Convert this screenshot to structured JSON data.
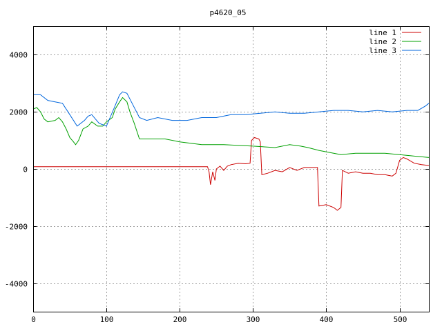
{
  "chart_data": {
    "type": "line",
    "title": "p4620_05",
    "xlabel": "",
    "ylabel": "",
    "xlim": [
      0,
      540
    ],
    "ylim": [
      -5000,
      5000
    ],
    "xticks": [
      0,
      100,
      200,
      300,
      400,
      500
    ],
    "yticks": [
      -4000,
      -2000,
      0,
      2000,
      4000
    ],
    "grid": true,
    "legend_position": "top-right",
    "series": [
      {
        "name": "line 1",
        "color": "#cc0000",
        "points": [
          [
            0,
            80
          ],
          [
            100,
            80
          ],
          [
            200,
            80
          ],
          [
            238,
            80
          ],
          [
            240,
            -100
          ],
          [
            242,
            -550
          ],
          [
            245,
            -100
          ],
          [
            248,
            -400
          ],
          [
            250,
            0
          ],
          [
            255,
            100
          ],
          [
            260,
            -50
          ],
          [
            265,
            100
          ],
          [
            270,
            150
          ],
          [
            280,
            200
          ],
          [
            290,
            180
          ],
          [
            296,
            200
          ],
          [
            298,
            1000
          ],
          [
            302,
            1100
          ],
          [
            308,
            1050
          ],
          [
            310,
            950
          ],
          [
            312,
            -200
          ],
          [
            320,
            -150
          ],
          [
            330,
            -50
          ],
          [
            340,
            -100
          ],
          [
            350,
            50
          ],
          [
            360,
            -50
          ],
          [
            370,
            50
          ],
          [
            380,
            50
          ],
          [
            388,
            50
          ],
          [
            390,
            -1300
          ],
          [
            400,
            -1250
          ],
          [
            410,
            -1350
          ],
          [
            415,
            -1450
          ],
          [
            420,
            -1350
          ],
          [
            422,
            -50
          ],
          [
            430,
            -150
          ],
          [
            440,
            -100
          ],
          [
            450,
            -150
          ],
          [
            460,
            -150
          ],
          [
            470,
            -200
          ],
          [
            480,
            -200
          ],
          [
            490,
            -250
          ],
          [
            495,
            -150
          ],
          [
            500,
            300
          ],
          [
            505,
            400
          ],
          [
            510,
            350
          ],
          [
            520,
            200
          ],
          [
            530,
            150
          ],
          [
            540,
            120
          ]
        ]
      },
      {
        "name": "line 2",
        "color": "#00a000",
        "points": [
          [
            0,
            2100
          ],
          [
            5,
            2150
          ],
          [
            10,
            2000
          ],
          [
            15,
            1750
          ],
          [
            20,
            1650
          ],
          [
            30,
            1700
          ],
          [
            35,
            1800
          ],
          [
            40,
            1650
          ],
          [
            45,
            1400
          ],
          [
            50,
            1100
          ],
          [
            55,
            950
          ],
          [
            58,
            850
          ],
          [
            62,
            1000
          ],
          [
            68,
            1400
          ],
          [
            75,
            1500
          ],
          [
            80,
            1650
          ],
          [
            88,
            1500
          ],
          [
            95,
            1500
          ],
          [
            100,
            1650
          ],
          [
            108,
            1800
          ],
          [
            112,
            2100
          ],
          [
            118,
            2350
          ],
          [
            122,
            2500
          ],
          [
            128,
            2350
          ],
          [
            132,
            2000
          ],
          [
            138,
            1600
          ],
          [
            145,
            1050
          ],
          [
            160,
            1050
          ],
          [
            180,
            1050
          ],
          [
            200,
            950
          ],
          [
            230,
            850
          ],
          [
            260,
            850
          ],
          [
            300,
            800
          ],
          [
            330,
            750
          ],
          [
            350,
            850
          ],
          [
            365,
            800
          ],
          [
            375,
            750
          ],
          [
            390,
            650
          ],
          [
            410,
            550
          ],
          [
            420,
            500
          ],
          [
            440,
            550
          ],
          [
            460,
            550
          ],
          [
            480,
            550
          ],
          [
            500,
            500
          ],
          [
            520,
            450
          ],
          [
            540,
            400
          ]
        ]
      },
      {
        "name": "line 3",
        "color": "#0066dd",
        "points": [
          [
            0,
            2600
          ],
          [
            10,
            2600
          ],
          [
            20,
            2400
          ],
          [
            30,
            2350
          ],
          [
            40,
            2300
          ],
          [
            50,
            1900
          ],
          [
            60,
            1500
          ],
          [
            70,
            1700
          ],
          [
            75,
            1850
          ],
          [
            80,
            1900
          ],
          [
            90,
            1600
          ],
          [
            100,
            1500
          ],
          [
            110,
            2100
          ],
          [
            118,
            2600
          ],
          [
            122,
            2700
          ],
          [
            128,
            2650
          ],
          [
            135,
            2300
          ],
          [
            145,
            1800
          ],
          [
            155,
            1700
          ],
          [
            170,
            1800
          ],
          [
            190,
            1700
          ],
          [
            210,
            1700
          ],
          [
            230,
            1800
          ],
          [
            250,
            1800
          ],
          [
            270,
            1900
          ],
          [
            290,
            1900
          ],
          [
            310,
            1950
          ],
          [
            330,
            2000
          ],
          [
            350,
            1950
          ],
          [
            370,
            1950
          ],
          [
            390,
            2000
          ],
          [
            410,
            2050
          ],
          [
            430,
            2050
          ],
          [
            450,
            2000
          ],
          [
            470,
            2050
          ],
          [
            490,
            2000
          ],
          [
            510,
            2050
          ],
          [
            525,
            2050
          ],
          [
            535,
            2200
          ],
          [
            540,
            2300
          ]
        ]
      }
    ]
  }
}
